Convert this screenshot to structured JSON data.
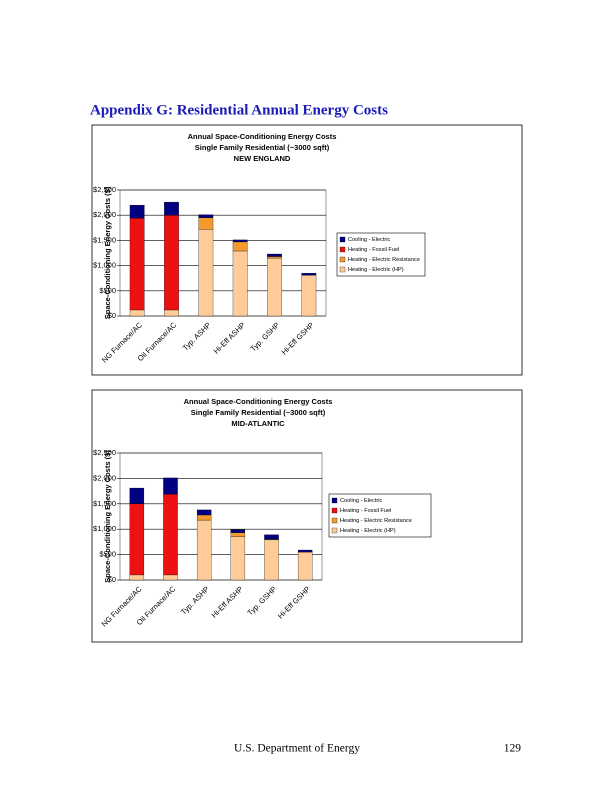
{
  "heading": "Appendix G:  Residential Annual Energy Costs",
  "footer": {
    "source": "U.S. Department of Energy",
    "page": "129"
  },
  "chart_data": [
    {
      "type": "bar",
      "stacked": true,
      "grid": true,
      "title": [
        "Annual Space-Conditioning Energy Costs",
        "Single Family Residential (~3000 sqft)",
        "NEW ENGLAND"
      ],
      "y_label": "Space-Conditioning Energy Costs ($)",
      "categories": [
        "NG Furnace/AC",
        "Oil Furnace/AC",
        "Typ. ASHP",
        "Hi-Eff ASHP",
        "Typ. GSHP",
        "Hi-Eff GSHP"
      ],
      "series": [
        {
          "name": "Cooling - Electric",
          "color": "#000080",
          "values": [
            260,
            260,
            60,
            40,
            50,
            40
          ]
        },
        {
          "name": "Heating - Fossil Fuel",
          "color": "#ee1111",
          "values": [
            1820,
            1880,
            0,
            0,
            0,
            0
          ]
        },
        {
          "name": "Heating - Electric Resistance",
          "color": "#f39a2f",
          "values": [
            0,
            0,
            230,
            180,
            30,
            0
          ]
        },
        {
          "name": "Heating - Electric (HP)",
          "color": "#ffcc99",
          "values": [
            120,
            120,
            1720,
            1290,
            1150,
            810
          ]
        }
      ],
      "ylim": [
        0,
        2500
      ],
      "yticks": [
        {
          "value": 0,
          "label": "$0"
        },
        {
          "value": 500,
          "label": "$500"
        },
        {
          "value": 1000,
          "label": "$1,000"
        },
        {
          "value": 1500,
          "label": "$1,500"
        },
        {
          "value": 2000,
          "label": "$2,000"
        },
        {
          "value": 2500,
          "label": "$2,500"
        }
      ]
    },
    {
      "type": "bar",
      "stacked": true,
      "grid": true,
      "title": [
        "Annual Space-Conditioning Energy Costs",
        "Single Family Residential (~3000 sqft)",
        "MID-ATLANTIC"
      ],
      "y_label": "Space-Conditioning Energy Costs ($)",
      "categories": [
        "NG Furnace/AC",
        "Oil Furnace/AC",
        "Typ. ASHP",
        "Hi-Eff ASHP",
        "Typ. GSHP",
        "Hi-Eff GSHP"
      ],
      "series": [
        {
          "name": "Cooling - Electric",
          "color": "#000080",
          "values": [
            310,
            320,
            100,
            60,
            90,
            40
          ]
        },
        {
          "name": "Heating - Fossil Fuel",
          "color": "#ee1111",
          "values": [
            1400,
            1590,
            0,
            0,
            0,
            0
          ]
        },
        {
          "name": "Heating - Electric Resistance",
          "color": "#f39a2f",
          "values": [
            0,
            0,
            100,
            80,
            10,
            0
          ]
        },
        {
          "name": "Heating - Electric (HP)",
          "color": "#ffcc99",
          "values": [
            100,
            100,
            1180,
            850,
            790,
            550
          ]
        }
      ],
      "ylim": [
        0,
        2500
      ],
      "yticks": [
        {
          "value": 0,
          "label": "$0"
        },
        {
          "value": 500,
          "label": "$500"
        },
        {
          "value": 1000,
          "label": "$1,000"
        },
        {
          "value": 1500,
          "label": "$1,500"
        },
        {
          "value": 2000,
          "label": "$2,000"
        },
        {
          "value": 2500,
          "label": "$2,500"
        }
      ]
    }
  ]
}
